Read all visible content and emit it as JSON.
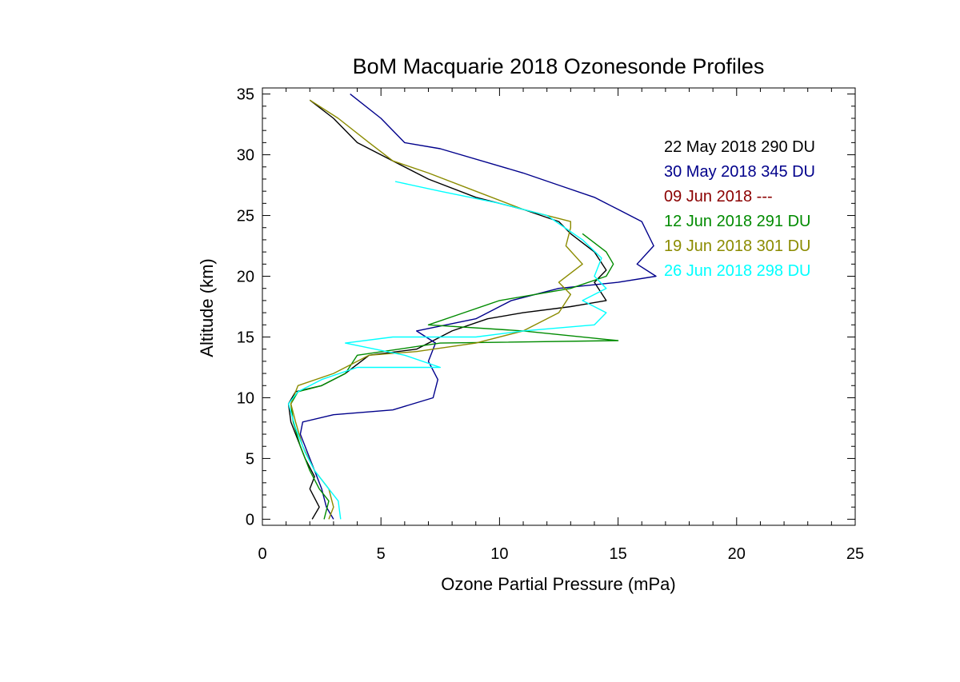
{
  "chart_data": {
    "type": "line",
    "title": "BoM Macquarie 2018 Ozonesonde Profiles",
    "xlabel": "Ozone Partial Pressure (mPa)",
    "ylabel": "Altitude (km)",
    "xlim": [
      0,
      25
    ],
    "ylim": [
      -0.5,
      35.5
    ],
    "x_ticks": [
      "0",
      "5",
      "10",
      "15",
      "20",
      "25"
    ],
    "y_ticks": [
      "0",
      "5",
      "10",
      "15",
      "20",
      "25",
      "30",
      "35"
    ],
    "grid": false,
    "legend_position": "top-right",
    "series": [
      {
        "name": "22 May 2018 290 DU",
        "color": "#000000",
        "points": [
          [
            2.1,
            0.0
          ],
          [
            2.4,
            1.0
          ],
          [
            2.0,
            2.5
          ],
          [
            2.2,
            3.5
          ],
          [
            1.8,
            5.0
          ],
          [
            1.5,
            6.5
          ],
          [
            1.2,
            8.0
          ],
          [
            1.1,
            9.5
          ],
          [
            1.4,
            10.5
          ],
          [
            2.5,
            11.0
          ],
          [
            3.5,
            12.0
          ],
          [
            4.5,
            13.5
          ],
          [
            6.5,
            14.0
          ],
          [
            8.0,
            15.5
          ],
          [
            9.5,
            16.5
          ],
          [
            11.0,
            17.0
          ],
          [
            13.0,
            17.5
          ],
          [
            14.5,
            18.0
          ],
          [
            14.0,
            19.5
          ],
          [
            14.5,
            20.5
          ],
          [
            14.0,
            22.0
          ],
          [
            13.0,
            23.5
          ],
          [
            12.5,
            24.5
          ],
          [
            11.0,
            25.5
          ],
          [
            9.0,
            26.5
          ],
          [
            7.0,
            28.0
          ],
          [
            5.5,
            29.5
          ],
          [
            4.0,
            31.0
          ],
          [
            3.0,
            33.0
          ],
          [
            2.0,
            34.5
          ]
        ]
      },
      {
        "name": "30 May 2018 345 DU",
        "color": "#00008b",
        "points": [
          [
            3.0,
            0.0
          ],
          [
            2.7,
            1.0
          ],
          [
            2.5,
            2.5
          ],
          [
            2.2,
            4.0
          ],
          [
            1.9,
            5.5
          ],
          [
            1.6,
            7.0
          ],
          [
            1.7,
            8.0
          ],
          [
            3.0,
            8.6
          ],
          [
            5.5,
            9.0
          ],
          [
            7.2,
            10.0
          ],
          [
            7.4,
            11.5
          ],
          [
            7.0,
            13.0
          ],
          [
            7.3,
            14.5
          ],
          [
            6.5,
            15.5
          ],
          [
            9.0,
            16.5
          ],
          [
            10.5,
            18.0
          ],
          [
            12.5,
            19.0
          ],
          [
            15.0,
            19.5
          ],
          [
            16.6,
            20.0
          ],
          [
            15.8,
            21.0
          ],
          [
            16.5,
            22.5
          ],
          [
            16.0,
            24.5
          ],
          [
            15.0,
            25.5
          ],
          [
            14.0,
            26.5
          ],
          [
            12.5,
            27.5
          ],
          [
            11.0,
            28.5
          ],
          [
            7.5,
            30.5
          ],
          [
            6.0,
            31.0
          ],
          [
            5.0,
            33.0
          ],
          [
            3.7,
            35.0
          ]
        ]
      },
      {
        "name": "09 Jun 2018  ---",
        "color": "#8b0000",
        "points": []
      },
      {
        "name": "12 Jun 2018 291 DU",
        "color": "#008b00",
        "points": [
          [
            2.6,
            0.0
          ],
          [
            2.8,
            1.5
          ],
          [
            2.4,
            2.5
          ],
          [
            2.0,
            4.0
          ],
          [
            1.6,
            6.0
          ],
          [
            1.3,
            8.0
          ],
          [
            1.2,
            9.5
          ],
          [
            1.5,
            10.5
          ],
          [
            2.5,
            11.0
          ],
          [
            3.5,
            12.0
          ],
          [
            4.0,
            13.5
          ],
          [
            7.5,
            14.5
          ],
          [
            15.0,
            14.7
          ],
          [
            11.0,
            15.5
          ],
          [
            7.0,
            16.0
          ],
          [
            8.5,
            17.0
          ],
          [
            10.0,
            18.0
          ],
          [
            11.5,
            18.5
          ],
          [
            13.0,
            19.0
          ],
          [
            14.5,
            20.0
          ],
          [
            14.8,
            21.0
          ],
          [
            14.5,
            22.0
          ],
          [
            13.5,
            23.5
          ]
        ]
      },
      {
        "name": "19 Jun 2018 301 DU",
        "color": "#8b8b00",
        "points": [
          [
            2.8,
            0.0
          ],
          [
            3.0,
            1.0
          ],
          [
            2.8,
            2.5
          ],
          [
            2.2,
            4.0
          ],
          [
            1.7,
            6.0
          ],
          [
            1.4,
            8.0
          ],
          [
            1.2,
            9.5
          ],
          [
            1.5,
            11.0
          ],
          [
            3.0,
            12.0
          ],
          [
            4.5,
            13.5
          ],
          [
            6.5,
            13.8
          ],
          [
            9.0,
            14.5
          ],
          [
            11.0,
            15.5
          ],
          [
            12.5,
            17.0
          ],
          [
            13.0,
            18.5
          ],
          [
            12.5,
            19.5
          ],
          [
            13.5,
            21.0
          ],
          [
            12.8,
            22.5
          ],
          [
            13.0,
            24.0
          ],
          [
            13.0,
            24.5
          ],
          [
            11.0,
            25.5
          ],
          [
            9.0,
            27.0
          ],
          [
            7.0,
            28.5
          ],
          [
            5.5,
            29.5
          ],
          [
            4.5,
            31.0
          ],
          [
            3.2,
            33.0
          ],
          [
            2.0,
            34.5
          ]
        ]
      },
      {
        "name": "26 Jun 2018 298 DU",
        "color": "#00ffff",
        "points": [
          [
            3.3,
            0.0
          ],
          [
            3.2,
            1.5
          ],
          [
            2.8,
            2.5
          ],
          [
            2.2,
            4.0
          ],
          [
            1.8,
            5.5
          ],
          [
            1.4,
            7.5
          ],
          [
            1.1,
            9.5
          ],
          [
            1.5,
            10.5
          ],
          [
            2.5,
            11.5
          ],
          [
            4.0,
            12.5
          ],
          [
            7.5,
            12.5
          ],
          [
            6.0,
            13.5
          ],
          [
            3.5,
            14.5
          ],
          [
            5.5,
            15.0
          ],
          [
            9.0,
            15.0
          ],
          [
            11.0,
            15.5
          ],
          [
            14.0,
            16.0
          ],
          [
            14.5,
            17.0
          ],
          [
            13.5,
            18.0
          ],
          [
            14.5,
            19.0
          ],
          [
            14.0,
            20.0
          ],
          [
            14.3,
            21.5
          ],
          [
            13.5,
            23.0
          ],
          [
            12.0,
            25.0
          ],
          [
            10.0,
            26.0
          ],
          [
            7.5,
            27.0
          ],
          [
            5.6,
            27.8
          ]
        ]
      }
    ]
  }
}
